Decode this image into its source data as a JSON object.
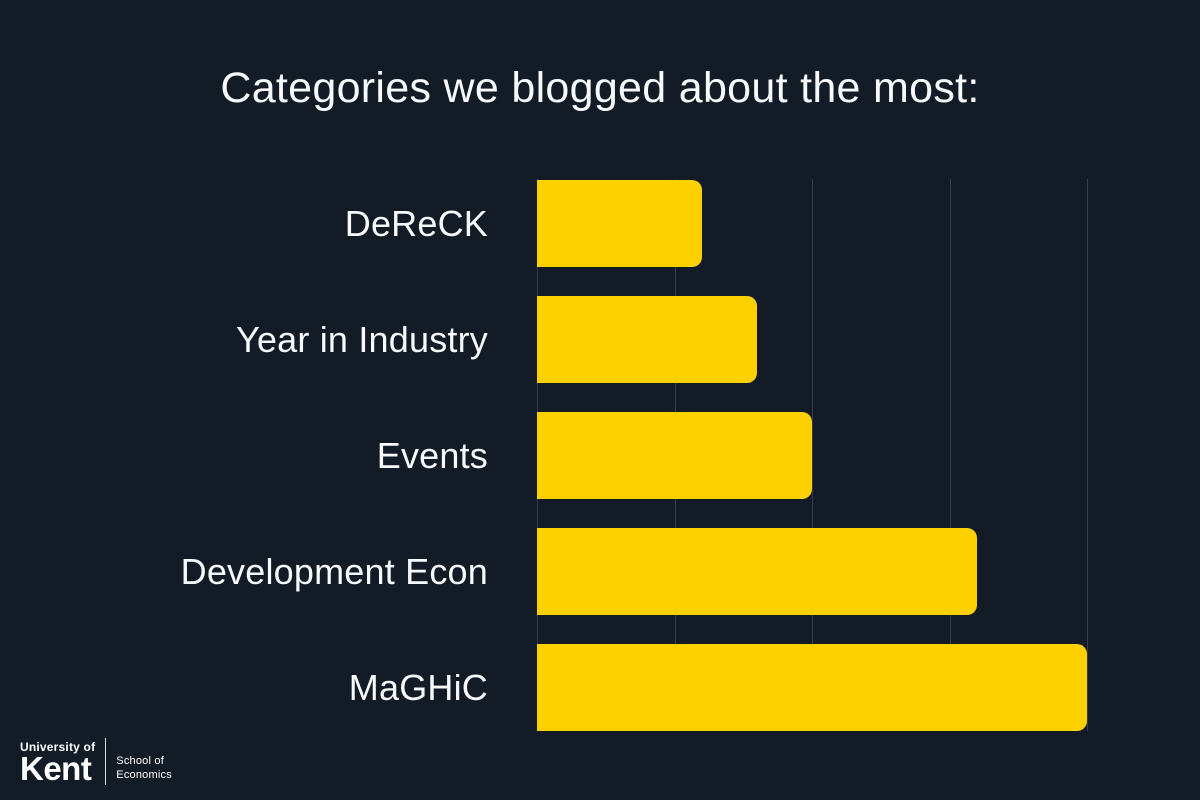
{
  "title": "Categories we blogged about the most:",
  "theme": {
    "background": "#131b26",
    "bar_color": "#ffd000",
    "text_color": "#f7f9fa",
    "gridline_color": "#343d49"
  },
  "chart_data": {
    "type": "bar",
    "orientation": "horizontal",
    "title": "Categories we blogged about the most:",
    "categories": [
      "DeReCK",
      "Year in Industry",
      "Events",
      "Development Econ",
      "MaGHiC"
    ],
    "values": [
      6,
      8,
      10,
      16,
      20
    ],
    "xlabel": "",
    "ylabel": "",
    "xlim": [
      0,
      20
    ],
    "gridline_values": [
      0,
      5,
      10,
      15,
      20
    ],
    "grid": true,
    "legend": false,
    "value_labels_shown": false,
    "axis_tick_labels_shown": false,
    "bar_color": "#ffd000"
  },
  "logo": {
    "university_small": "University of",
    "university_big": "Kent",
    "department_line1": "School of",
    "department_line2": "Economics"
  }
}
